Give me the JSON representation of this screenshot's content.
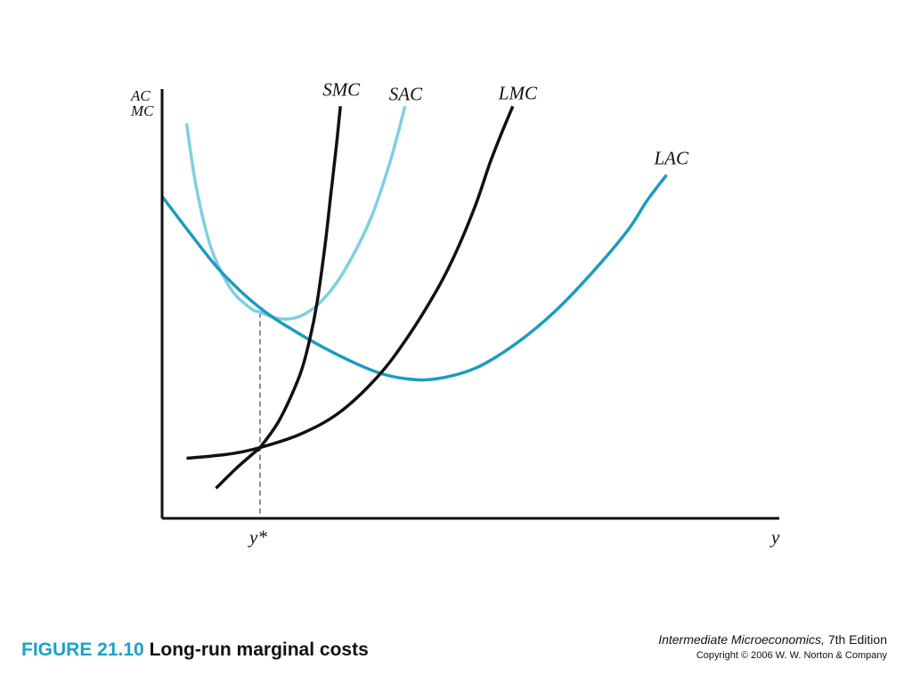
{
  "chart_data": {
    "type": "line",
    "ylabel_lines": [
      "AC",
      "MC"
    ],
    "xlabel": "y",
    "x_ticks": [
      {
        "label": "y*",
        "x": 1.0
      }
    ],
    "xlim": [
      0,
      5.2
    ],
    "ylim": [
      0,
      10
    ],
    "grid": false,
    "legend": "none",
    "colors": {
      "axes": "#111111",
      "short_run": "#7fcfe2",
      "long_run_average": "#1b9cc0",
      "marginal": "#111111"
    },
    "series": [
      {
        "name": "SMC",
        "color": "#111111",
        "x": [
          0.55,
          0.75,
          0.95,
          1.0,
          1.2,
          1.4,
          1.5,
          1.58,
          1.66,
          1.72,
          1.78,
          1.82
        ],
        "y": [
          0.7,
          1.15,
          1.55,
          1.65,
          2.3,
          3.3,
          4.1,
          5.0,
          6.3,
          7.5,
          8.7,
          9.6
        ]
      },
      {
        "name": "SAC",
        "color": "#7fcfe2",
        "x": [
          0.25,
          0.35,
          0.5,
          0.7,
          0.9,
          1.0,
          1.2,
          1.4,
          1.6,
          1.8,
          2.0,
          2.15,
          2.3,
          2.4,
          2.48
        ],
        "y": [
          9.2,
          7.7,
          6.3,
          5.35,
          4.9,
          4.8,
          4.65,
          4.7,
          5.0,
          5.55,
          6.35,
          7.1,
          8.1,
          8.9,
          9.6
        ]
      },
      {
        "name": "LMC",
        "color": "#111111",
        "x": [
          0.25,
          0.5,
          0.75,
          1.0,
          1.4,
          1.8,
          2.2,
          2.5,
          2.8,
          3.0,
          3.2,
          3.35,
          3.47,
          3.58
        ],
        "y": [
          1.4,
          1.45,
          1.52,
          1.65,
          1.95,
          2.45,
          3.3,
          4.2,
          5.3,
          6.2,
          7.3,
          8.3,
          9.0,
          9.6
        ]
      },
      {
        "name": "LAC",
        "color": "#1b9cc0",
        "x": [
          0.0,
          0.3,
          0.6,
          1.0,
          1.4,
          1.8,
          2.2,
          2.5,
          2.8,
          3.2,
          3.6,
          4.0,
          4.4,
          4.75,
          4.95,
          5.15
        ],
        "y": [
          7.5,
          6.6,
          5.75,
          4.9,
          4.3,
          3.8,
          3.4,
          3.25,
          3.25,
          3.5,
          4.05,
          4.8,
          5.75,
          6.7,
          7.4,
          8.0
        ]
      }
    ],
    "annotations": [
      {
        "type": "dashed-vertical",
        "x": 1.0,
        "y_top": 4.8
      }
    ]
  },
  "caption": {
    "figure_number": "FIGURE 21.10",
    "figure_title": "Long-run marginal costs"
  },
  "credits": {
    "book_title": "Intermediate Microeconomics,",
    "edition": " 7th Edition",
    "copyright": "Copyright © 2006 W. W. Norton & Company"
  }
}
